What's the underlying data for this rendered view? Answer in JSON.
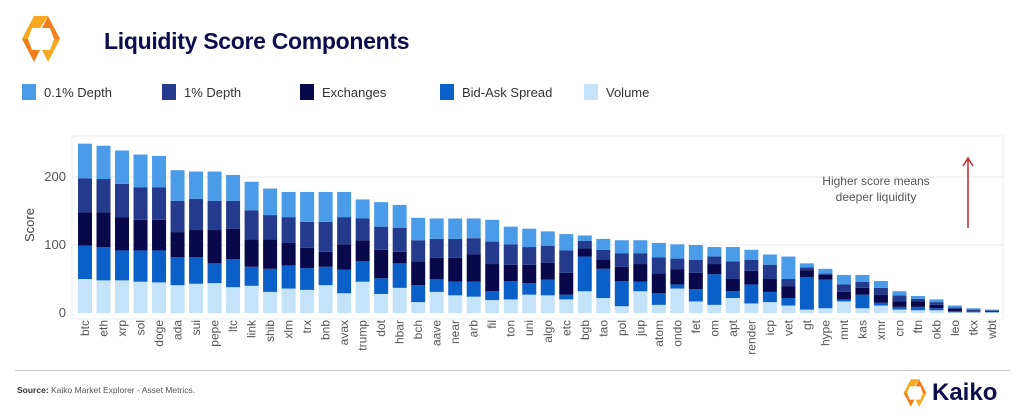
{
  "header": {
    "title": "Liquidity Score Components",
    "logo": "Kaiko"
  },
  "footer": {
    "source_label": "Source:",
    "source_text": " Kaiko Market Explorer - Asset Metrics.",
    "brand": "Kaiko"
  },
  "chart_data": {
    "type": "bar",
    "stacked": true,
    "title": "Liquidity Score Components",
    "xlabel": "",
    "ylabel": "Score",
    "ylim": [
      0,
      260
    ],
    "yticks": [
      0,
      100,
      200
    ],
    "grid": true,
    "legend_position": "top",
    "annotation": [
      "Higher score means",
      "deeper liquidity"
    ],
    "annotation_arrow_color": "#c0272d",
    "categories": [
      "btc",
      "eth",
      "xrp",
      "sol",
      "doge",
      "ada",
      "sui",
      "pepe",
      "ltc",
      "link",
      "shib",
      "xlm",
      "trx",
      "bnb",
      "avax",
      "trump",
      "dot",
      "hbar",
      "bch",
      "aave",
      "near",
      "arb",
      "fil",
      "ton",
      "uni",
      "algo",
      "etc",
      "bgb",
      "tao",
      "pol",
      "jup",
      "atom",
      "ondo",
      "fet",
      "om",
      "apt",
      "render",
      "icp",
      "vet",
      "gt",
      "hype",
      "mnt",
      "kas",
      "xmr",
      "cro",
      "ftn",
      "okb",
      "leo",
      "tkx",
      "wbt"
    ],
    "series": [
      {
        "name": "Volume",
        "color": "#c4e2f8",
        "values": [
          50,
          48,
          48,
          46,
          45,
          41,
          43,
          44,
          38,
          40,
          31,
          36,
          34,
          41,
          29,
          46,
          28,
          37,
          16,
          31,
          26,
          24,
          19,
          20,
          27,
          26,
          20,
          32,
          22,
          10,
          32,
          12,
          36,
          17,
          12,
          22,
          14,
          16,
          11,
          5,
          7,
          17,
          7,
          11,
          5,
          4,
          4,
          1,
          1,
          1
        ]
      },
      {
        "name": "Bid-Ask Spread",
        "color": "#0b5fc8",
        "values": [
          49,
          49,
          44,
          46,
          47,
          41,
          39,
          29,
          41,
          28,
          34,
          34,
          32,
          27,
          35,
          30,
          23,
          36,
          25,
          19,
          20,
          22,
          13,
          27,
          17,
          23,
          7,
          51,
          43,
          37,
          14,
          17,
          6,
          18,
          45,
          10,
          28,
          15,
          11,
          48,
          42,
          3,
          20,
          4,
          4,
          5,
          3,
          2,
          2,
          1
        ]
      },
      {
        "name": "Exchanges",
        "color": "#08084a",
        "values": [
          49,
          51,
          49,
          45,
          45,
          37,
          40,
          49,
          45,
          40,
          43,
          33,
          30,
          22,
          37,
          31,
          42,
          17,
          35,
          31,
          35,
          40,
          40,
          24,
          27,
          25,
          32,
          12,
          14,
          21,
          26,
          29,
          22,
          24,
          15,
          18,
          20,
          19,
          17,
          10,
          7,
          11,
          10,
          12,
          8,
          8,
          5,
          3,
          1,
          1
        ]
      },
      {
        "name": "1% Depth",
        "color": "#243a8c",
        "values": [
          50,
          49,
          49,
          48,
          48,
          46,
          46,
          43,
          41,
          43,
          36,
          38,
          38,
          44,
          40,
          32,
          34,
          35,
          31,
          28,
          28,
          24,
          33,
          30,
          26,
          25,
          33,
          11,
          14,
          20,
          16,
          24,
          16,
          19,
          11,
          26,
          16,
          21,
          11,
          4,
          2,
          11,
          9,
          10,
          9,
          4,
          4,
          2,
          1,
          1
        ]
      },
      {
        "name": "0.1% Depth",
        "color": "#4a9be8",
        "values": [
          51,
          49,
          49,
          48,
          46,
          45,
          40,
          43,
          38,
          42,
          39,
          37,
          44,
          44,
          37,
          28,
          36,
          34,
          33,
          30,
          30,
          29,
          32,
          26,
          27,
          21,
          24,
          8,
          16,
          19,
          19,
          21,
          21,
          22,
          14,
          21,
          15,
          15,
          33,
          6,
          7,
          14,
          10,
          10,
          6,
          4,
          4,
          3,
          2,
          1
        ]
      }
    ],
    "legend_order": [
      "0.1% Depth",
      "1% Depth",
      "Exchanges",
      "Bid-Ask Spread",
      "Volume"
    ]
  }
}
